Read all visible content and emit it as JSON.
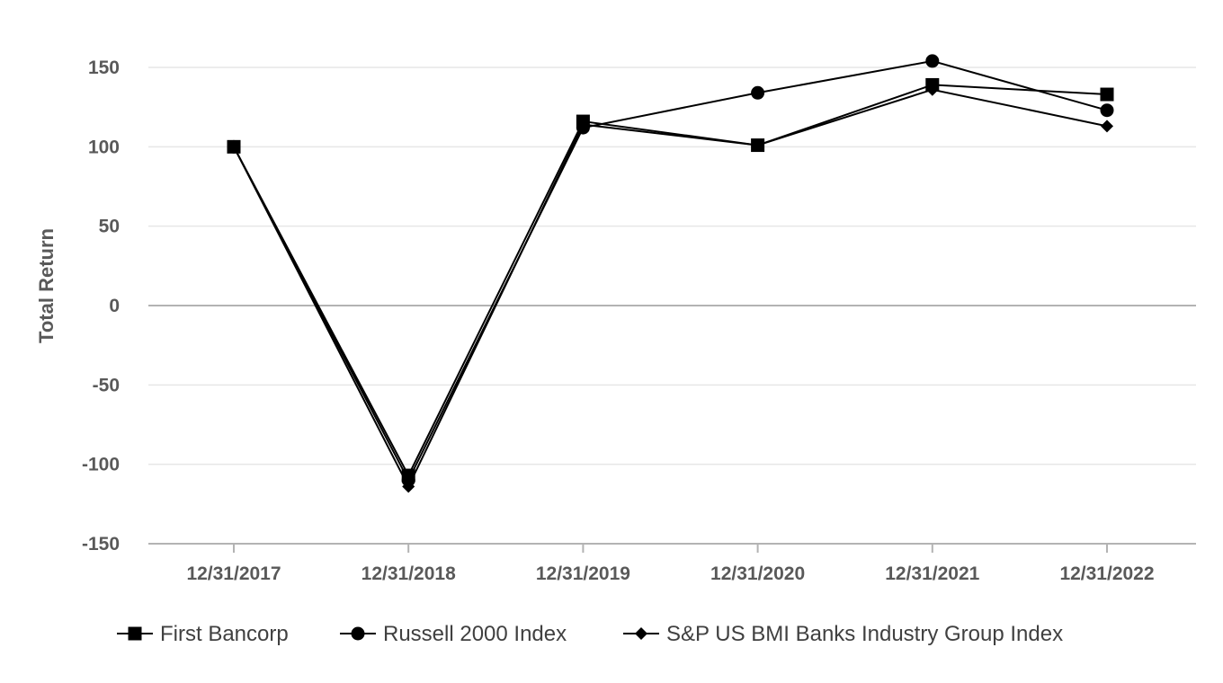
{
  "chart_data": {
    "type": "line",
    "title": "",
    "xlabel": "",
    "ylabel": "Total Return",
    "categories": [
      "12/31/2017",
      "12/31/2018",
      "12/31/2019",
      "12/31/2020",
      "12/31/2021",
      "12/31/2022"
    ],
    "ylim": [
      -150,
      150
    ],
    "yticks": [
      150,
      100,
      50,
      0,
      -50,
      -100,
      -150
    ],
    "grid": true,
    "legend_position": "bottom",
    "series": [
      {
        "name": "First Bancorp",
        "marker": "square",
        "values": [
          100,
          -107,
          116,
          101,
          139,
          133
        ],
        "color": "#000000"
      },
      {
        "name": "Russell 2000 Index",
        "marker": "circle",
        "values": [
          100,
          -110,
          112,
          134,
          154,
          123
        ],
        "color": "#000000"
      },
      {
        "name": "S&P US BMI Banks Industry Group Index",
        "marker": "diamond",
        "values": [
          100,
          -114,
          114,
          101,
          136,
          113
        ],
        "color": "#000000"
      }
    ]
  }
}
